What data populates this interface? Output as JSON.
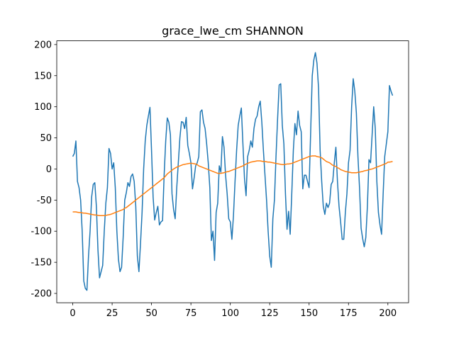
{
  "chart_data": {
    "type": "line",
    "title": "grace_lwe_cm SHANNON",
    "x": [
      0,
      1,
      2,
      3,
      4,
      5,
      6,
      7,
      8,
      9,
      10,
      11,
      12,
      13,
      14,
      15,
      16,
      17,
      18,
      19,
      20,
      21,
      22,
      23,
      24,
      25,
      26,
      27,
      28,
      29,
      30,
      31,
      32,
      33,
      34,
      35,
      36,
      37,
      38,
      39,
      40,
      41,
      42,
      43,
      44,
      45,
      46,
      47,
      48,
      49,
      50,
      51,
      52,
      53,
      54,
      55,
      56,
      57,
      58,
      59,
      60,
      61,
      62,
      63,
      64,
      65,
      66,
      67,
      68,
      69,
      70,
      71,
      72,
      73,
      74,
      75,
      76,
      77,
      78,
      79,
      80,
      81,
      82,
      83,
      84,
      85,
      86,
      87,
      88,
      89,
      90,
      91,
      92,
      93,
      94,
      95,
      96,
      97,
      98,
      99,
      100,
      101,
      102,
      103,
      104,
      105,
      106,
      107,
      108,
      109,
      110,
      111,
      112,
      113,
      114,
      115,
      116,
      117,
      118,
      119,
      120,
      121,
      122,
      123,
      124,
      125,
      126,
      127,
      128,
      129,
      130,
      131,
      132,
      133,
      134,
      135,
      136,
      137,
      138,
      139,
      140,
      141,
      142,
      143,
      144,
      145,
      146,
      147,
      148,
      149,
      150,
      151,
      152,
      153,
      154,
      155,
      156,
      157,
      158,
      159,
      160,
      161,
      162,
      163,
      164,
      165,
      166,
      167,
      168,
      169,
      170,
      171,
      172,
      173,
      174,
      175,
      176,
      177,
      178,
      179,
      180,
      181,
      182,
      183,
      184,
      185,
      186,
      187,
      188,
      189,
      190,
      191,
      192,
      193,
      194,
      195,
      196,
      197,
      198,
      199,
      200,
      201,
      202,
      203
    ],
    "series": [
      {
        "color": "#1f77b4",
        "values": [
          20,
          25,
          45,
          -20,
          -30,
          -50,
          -100,
          -180,
          -192,
          -195,
          -140,
          -100,
          -45,
          -25,
          -22,
          -60,
          -130,
          -175,
          -165,
          -155,
          -100,
          -55,
          -30,
          33,
          25,
          0,
          10,
          -30,
          -100,
          -145,
          -165,
          -158,
          -110,
          -50,
          -38,
          -22,
          -28,
          -12,
          -8,
          -20,
          -60,
          -140,
          -165,
          -120,
          -70,
          0,
          45,
          70,
          85,
          99,
          30,
          -45,
          -82,
          -70,
          -60,
          -90,
          -85,
          -83,
          -10,
          45,
          82,
          75,
          55,
          -40,
          -65,
          -80,
          -30,
          10,
          50,
          76,
          75,
          65,
          83,
          38,
          25,
          10,
          -32,
          -15,
          5,
          10,
          20,
          92,
          95,
          75,
          65,
          40,
          10,
          -30,
          -115,
          -100,
          -147,
          -70,
          -55,
          5,
          -5,
          52,
          35,
          -10,
          -40,
          -80,
          -85,
          -113,
          -75,
          -20,
          30,
          70,
          85,
          98,
          40,
          -15,
          -43,
          20,
          30,
          45,
          35,
          65,
          80,
          85,
          100,
          109,
          75,
          30,
          -10,
          -50,
          -100,
          -140,
          -158,
          -80,
          -50,
          20,
          80,
          135,
          137,
          70,
          40,
          -40,
          -97,
          -68,
          -105,
          -40,
          30,
          73,
          55,
          93,
          70,
          60,
          -32,
          -10,
          -10,
          -20,
          -30,
          60,
          150,
          175,
          187,
          170,
          130,
          30,
          -20,
          -60,
          -73,
          -55,
          -62,
          -55,
          -25,
          -20,
          10,
          35,
          -20,
          -60,
          -85,
          -113,
          -113,
          -70,
          -40,
          10,
          30,
          100,
          145,
          125,
          90,
          20,
          -30,
          -95,
          -112,
          -125,
          -110,
          -60,
          15,
          10,
          55,
          100,
          65,
          -20,
          -70,
          -90,
          -105,
          -40,
          20,
          40,
          60,
          134,
          125,
          118
        ]
      },
      {
        "color": "#ff7f0e",
        "values": [
          -69,
          -69,
          -69,
          -69.5,
          -70,
          -70,
          -70.5,
          -71,
          -71,
          -71.5,
          -72,
          -72.5,
          -73,
          -73.5,
          -74,
          -74,
          -74.5,
          -75,
          -75,
          -75,
          -75,
          -74.5,
          -74,
          -73.5,
          -73,
          -72,
          -71,
          -70,
          -69,
          -68,
          -67,
          -66,
          -65,
          -63,
          -62,
          -60,
          -58,
          -56,
          -54,
          -52,
          -50,
          -48,
          -46,
          -44,
          -42,
          -40,
          -38,
          -36,
          -34,
          -32,
          -30,
          -28,
          -26,
          -24,
          -22,
          -20,
          -18,
          -16,
          -14,
          -11,
          -8,
          -6,
          -4,
          -2,
          0,
          1.5,
          3,
          4,
          5,
          6,
          7,
          7.5,
          8,
          8.5,
          9,
          9,
          9,
          8.5,
          8,
          7,
          5,
          4,
          3,
          2,
          1,
          0,
          -1,
          -2,
          -3,
          -4,
          -5,
          -6,
          -7,
          -7,
          -7,
          -6.5,
          -6,
          -5,
          -4.5,
          -4,
          -3,
          -2,
          -1,
          0,
          1,
          2,
          3,
          4,
          5,
          6.5,
          8,
          9,
          10,
          11,
          11.5,
          12,
          12.5,
          13,
          13,
          13,
          12.5,
          12,
          12,
          11.5,
          11,
          11,
          10.5,
          10,
          9.5,
          9,
          8.5,
          8,
          7.5,
          7,
          7,
          7.5,
          8,
          8,
          8.5,
          9,
          10,
          11,
          12,
          13,
          14,
          15,
          16,
          17,
          18,
          19,
          20,
          20.5,
          21,
          21,
          21,
          20,
          19.5,
          19,
          18,
          16,
          14,
          12,
          11,
          10,
          8,
          6,
          5,
          4,
          2,
          1,
          -1,
          -2,
          -3,
          -4,
          -4.5,
          -5,
          -5.5,
          -6,
          -6,
          -6,
          -6,
          -5.5,
          -5,
          -4.5,
          -4,
          -3,
          -2.5,
          -2,
          -1,
          -0.5,
          0,
          1,
          2,
          3,
          4,
          5,
          6,
          7,
          8,
          9,
          11,
          11,
          11.5,
          12
        ]
      }
    ],
    "xlim": [
      -10.15,
      213.15
    ],
    "xticks": [
      0,
      25,
      50,
      75,
      100,
      125,
      150,
      175,
      200
    ],
    "ylim": [
      -215,
      206
    ],
    "yticks": [
      -200,
      -150,
      -100,
      -50,
      0,
      50,
      100,
      150,
      200
    ]
  }
}
